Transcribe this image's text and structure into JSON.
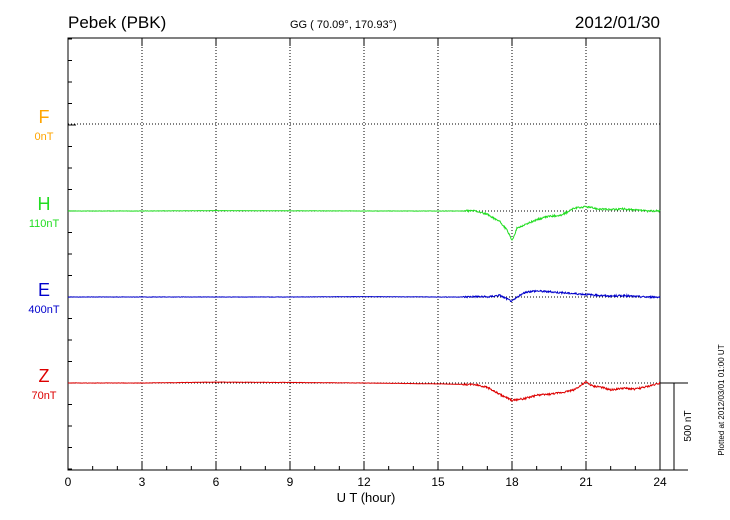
{
  "header": {
    "station": "Pebek (PBK)",
    "coords": "GG ( 70.09°, 170.93°)",
    "date": "2012/01/30"
  },
  "side_note": "Plotted at 2012/03/01 01:00 UT",
  "chart_data": {
    "type": "line",
    "title": "Pebek (PBK)",
    "xlabel": "U T (hour)",
    "ylabel": "",
    "xlim": [
      0,
      24
    ],
    "x_ticks": [
      0,
      3,
      6,
      9,
      12,
      15,
      18,
      21,
      24
    ],
    "x_tick_labels": [
      "0",
      "3",
      "6",
      "9",
      "12",
      "15",
      "18",
      "21",
      "24"
    ],
    "unit": "nT",
    "scale_bar": {
      "label": "500 nT",
      "value_nT": 500
    },
    "grid": true,
    "series": [
      {
        "name": "F",
        "baseline_label": "0nT",
        "baseline_nT": 0,
        "color": "#ffa500",
        "x": [],
        "y": []
      },
      {
        "name": "H",
        "baseline_label": "110nT",
        "baseline_nT": 110,
        "color": "#22dd22",
        "x": [
          0,
          3,
          6,
          9,
          12,
          15,
          16,
          16.5,
          17,
          17.5,
          17.8,
          18,
          18.2,
          18.5,
          19,
          19.5,
          20,
          20.5,
          21,
          21.5,
          22,
          22.5,
          23,
          23.5,
          24
        ],
        "y": [
          0,
          0,
          2,
          1,
          0,
          0,
          0,
          2,
          -20,
          -60,
          -110,
          -170,
          -100,
          -80,
          -50,
          -30,
          -25,
          15,
          25,
          12,
          8,
          12,
          5,
          0,
          0
        ]
      },
      {
        "name": "E",
        "baseline_label": "400nT",
        "baseline_nT": 400,
        "color": "#0000cc",
        "x": [
          0,
          3,
          6,
          9,
          12,
          15,
          16,
          16.5,
          17,
          17.5,
          18,
          18.3,
          18.6,
          19,
          19.5,
          20,
          20.5,
          21,
          21.5,
          22,
          22.5,
          23,
          23.5,
          24
        ],
        "y": [
          0,
          0,
          0,
          0,
          2,
          0,
          0,
          3,
          0,
          10,
          -25,
          8,
          30,
          35,
          30,
          25,
          20,
          15,
          10,
          5,
          8,
          3,
          0,
          0
        ]
      },
      {
        "name": "Z",
        "baseline_label": "70nT",
        "baseline_nT": 70,
        "color": "#dd0000",
        "x": [
          0,
          3,
          6,
          9,
          12,
          15,
          16,
          16.5,
          17,
          17.5,
          18,
          18.5,
          19,
          19.5,
          20,
          20.5,
          21,
          21.3,
          21.5,
          22,
          22.5,
          23,
          23.5,
          24
        ],
        "y": [
          0,
          0,
          5,
          3,
          0,
          -5,
          -8,
          -8,
          -25,
          -65,
          -100,
          -90,
          -70,
          -65,
          -55,
          -40,
          5,
          -20,
          -20,
          -40,
          -30,
          -35,
          -20,
          0
        ]
      }
    ]
  }
}
